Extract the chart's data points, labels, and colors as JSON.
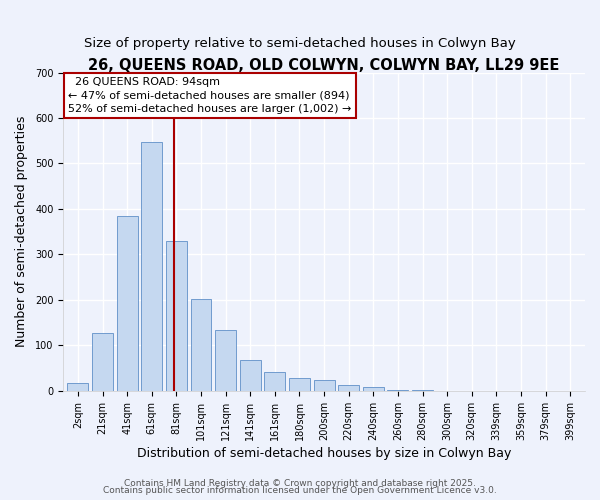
{
  "title": "26, QUEENS ROAD, OLD COLWYN, COLWYN BAY, LL29 9EE",
  "subtitle": "Size of property relative to semi-detached houses in Colwyn Bay",
  "xlabel": "Distribution of semi-detached houses by size in Colwyn Bay",
  "ylabel": "Number of semi-detached properties",
  "bar_color": "#c5d8f0",
  "bar_edge_color": "#6090c8",
  "background_color": "#eef2fc",
  "grid_color": "#ffffff",
  "annotation_box_color": "#aa0000",
  "vline_color": "#aa0000",
  "bin_labels": [
    "2sqm",
    "21sqm",
    "41sqm",
    "61sqm",
    "81sqm",
    "101sqm",
    "121sqm",
    "141sqm",
    "161sqm",
    "180sqm",
    "200sqm",
    "220sqm",
    "240sqm",
    "260sqm",
    "280sqm",
    "300sqm",
    "320sqm",
    "339sqm",
    "359sqm",
    "379sqm",
    "399sqm"
  ],
  "bar_heights": [
    18,
    128,
    385,
    548,
    330,
    202,
    135,
    68,
    42,
    28,
    25,
    14,
    8,
    3,
    2,
    1,
    0,
    0,
    0,
    0,
    0
  ],
  "ylim": [
    0,
    700
  ],
  "yticks": [
    0,
    100,
    200,
    300,
    400,
    500,
    600,
    700
  ],
  "property_label": "26 QUEENS ROAD: 94sqm",
  "pct_smaller": 47,
  "count_smaller": 894,
  "pct_larger": 52,
  "count_larger": 1002,
  "vline_x": 3.9,
  "footer_line1": "Contains HM Land Registry data © Crown copyright and database right 2025.",
  "footer_line2": "Contains public sector information licensed under the Open Government Licence v3.0.",
  "title_fontsize": 10.5,
  "subtitle_fontsize": 9.5,
  "axis_label_fontsize": 9,
  "tick_fontsize": 7,
  "annotation_fontsize": 8,
  "footer_fontsize": 6.5
}
